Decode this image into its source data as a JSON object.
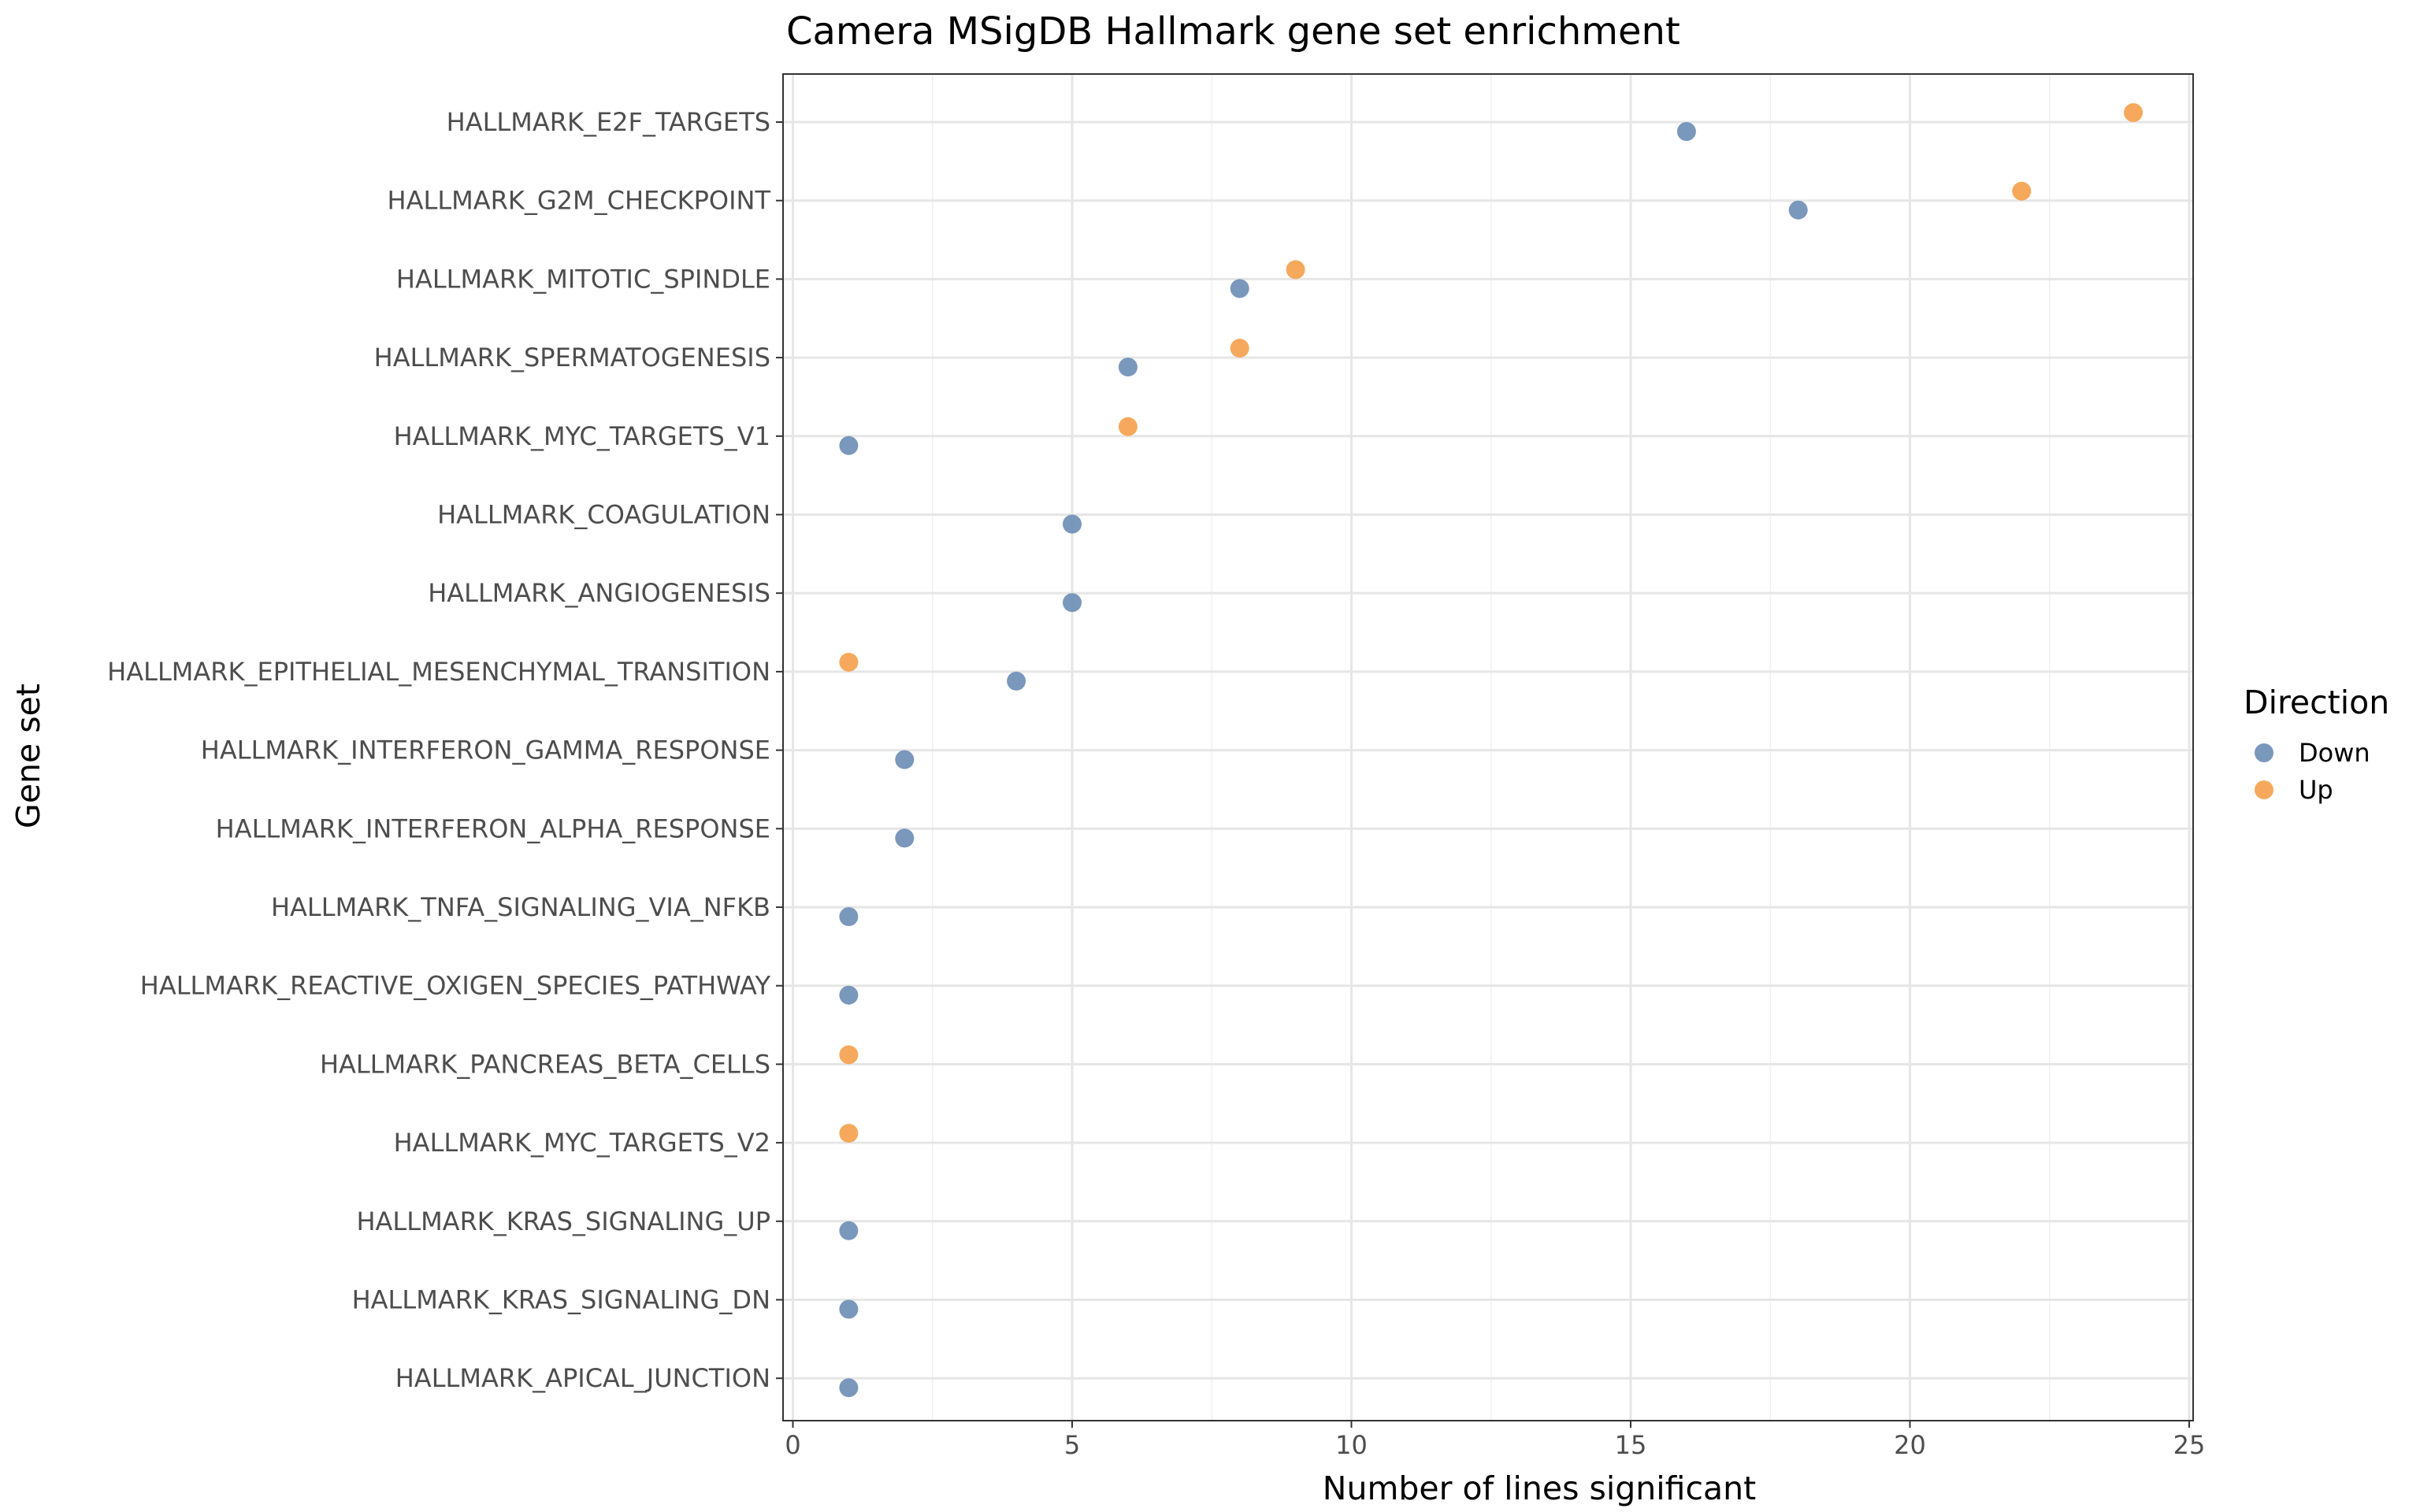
{
  "chart_data": {
    "type": "scatter",
    "title": "Camera MSigDB Hallmark gene set enrichment",
    "xlabel": "Number of lines significant",
    "ylabel": "Gene set",
    "xlim": [
      0,
      25
    ],
    "x_ticks": [
      "0",
      "5",
      "10",
      "15",
      "20",
      "25"
    ],
    "grid": true,
    "legend_position": "right",
    "legend": {
      "title": "Direction",
      "items": [
        {
          "label": "Down",
          "color": "#6b8cb5"
        },
        {
          "label": "Up",
          "color": "#f5a04a"
        }
      ]
    },
    "categories": [
      "HALLMARK_E2F_TARGETS",
      "HALLMARK_G2M_CHECKPOINT",
      "HALLMARK_MITOTIC_SPINDLE",
      "HALLMARK_SPERMATOGENESIS",
      "HALLMARK_MYC_TARGETS_V1",
      "HALLMARK_COAGULATION",
      "HALLMARK_ANGIOGENESIS",
      "HALLMARK_EPITHELIAL_MESENCHYMAL_TRANSITION",
      "HALLMARK_INTERFERON_GAMMA_RESPONSE",
      "HALLMARK_INTERFERON_ALPHA_RESPONSE",
      "HALLMARK_TNFA_SIGNALING_VIA_NFKB",
      "HALLMARK_REACTIVE_OXIGEN_SPECIES_PATHWAY",
      "HALLMARK_PANCREAS_BETA_CELLS",
      "HALLMARK_MYC_TARGETS_V2",
      "HALLMARK_KRAS_SIGNALING_UP",
      "HALLMARK_KRAS_SIGNALING_DN",
      "HALLMARK_APICAL_JUNCTION"
    ],
    "series": [
      {
        "name": "Down",
        "color": "#6b8cb5",
        "values": [
          16,
          18,
          8,
          6,
          1,
          5,
          5,
          4,
          2,
          2,
          1,
          1,
          null,
          null,
          1,
          1,
          1
        ]
      },
      {
        "name": "Up",
        "color": "#f5a04a",
        "values": [
          24,
          22,
          9,
          8,
          6,
          null,
          null,
          1,
          null,
          null,
          null,
          null,
          1,
          1,
          null,
          null,
          null
        ]
      }
    ]
  }
}
